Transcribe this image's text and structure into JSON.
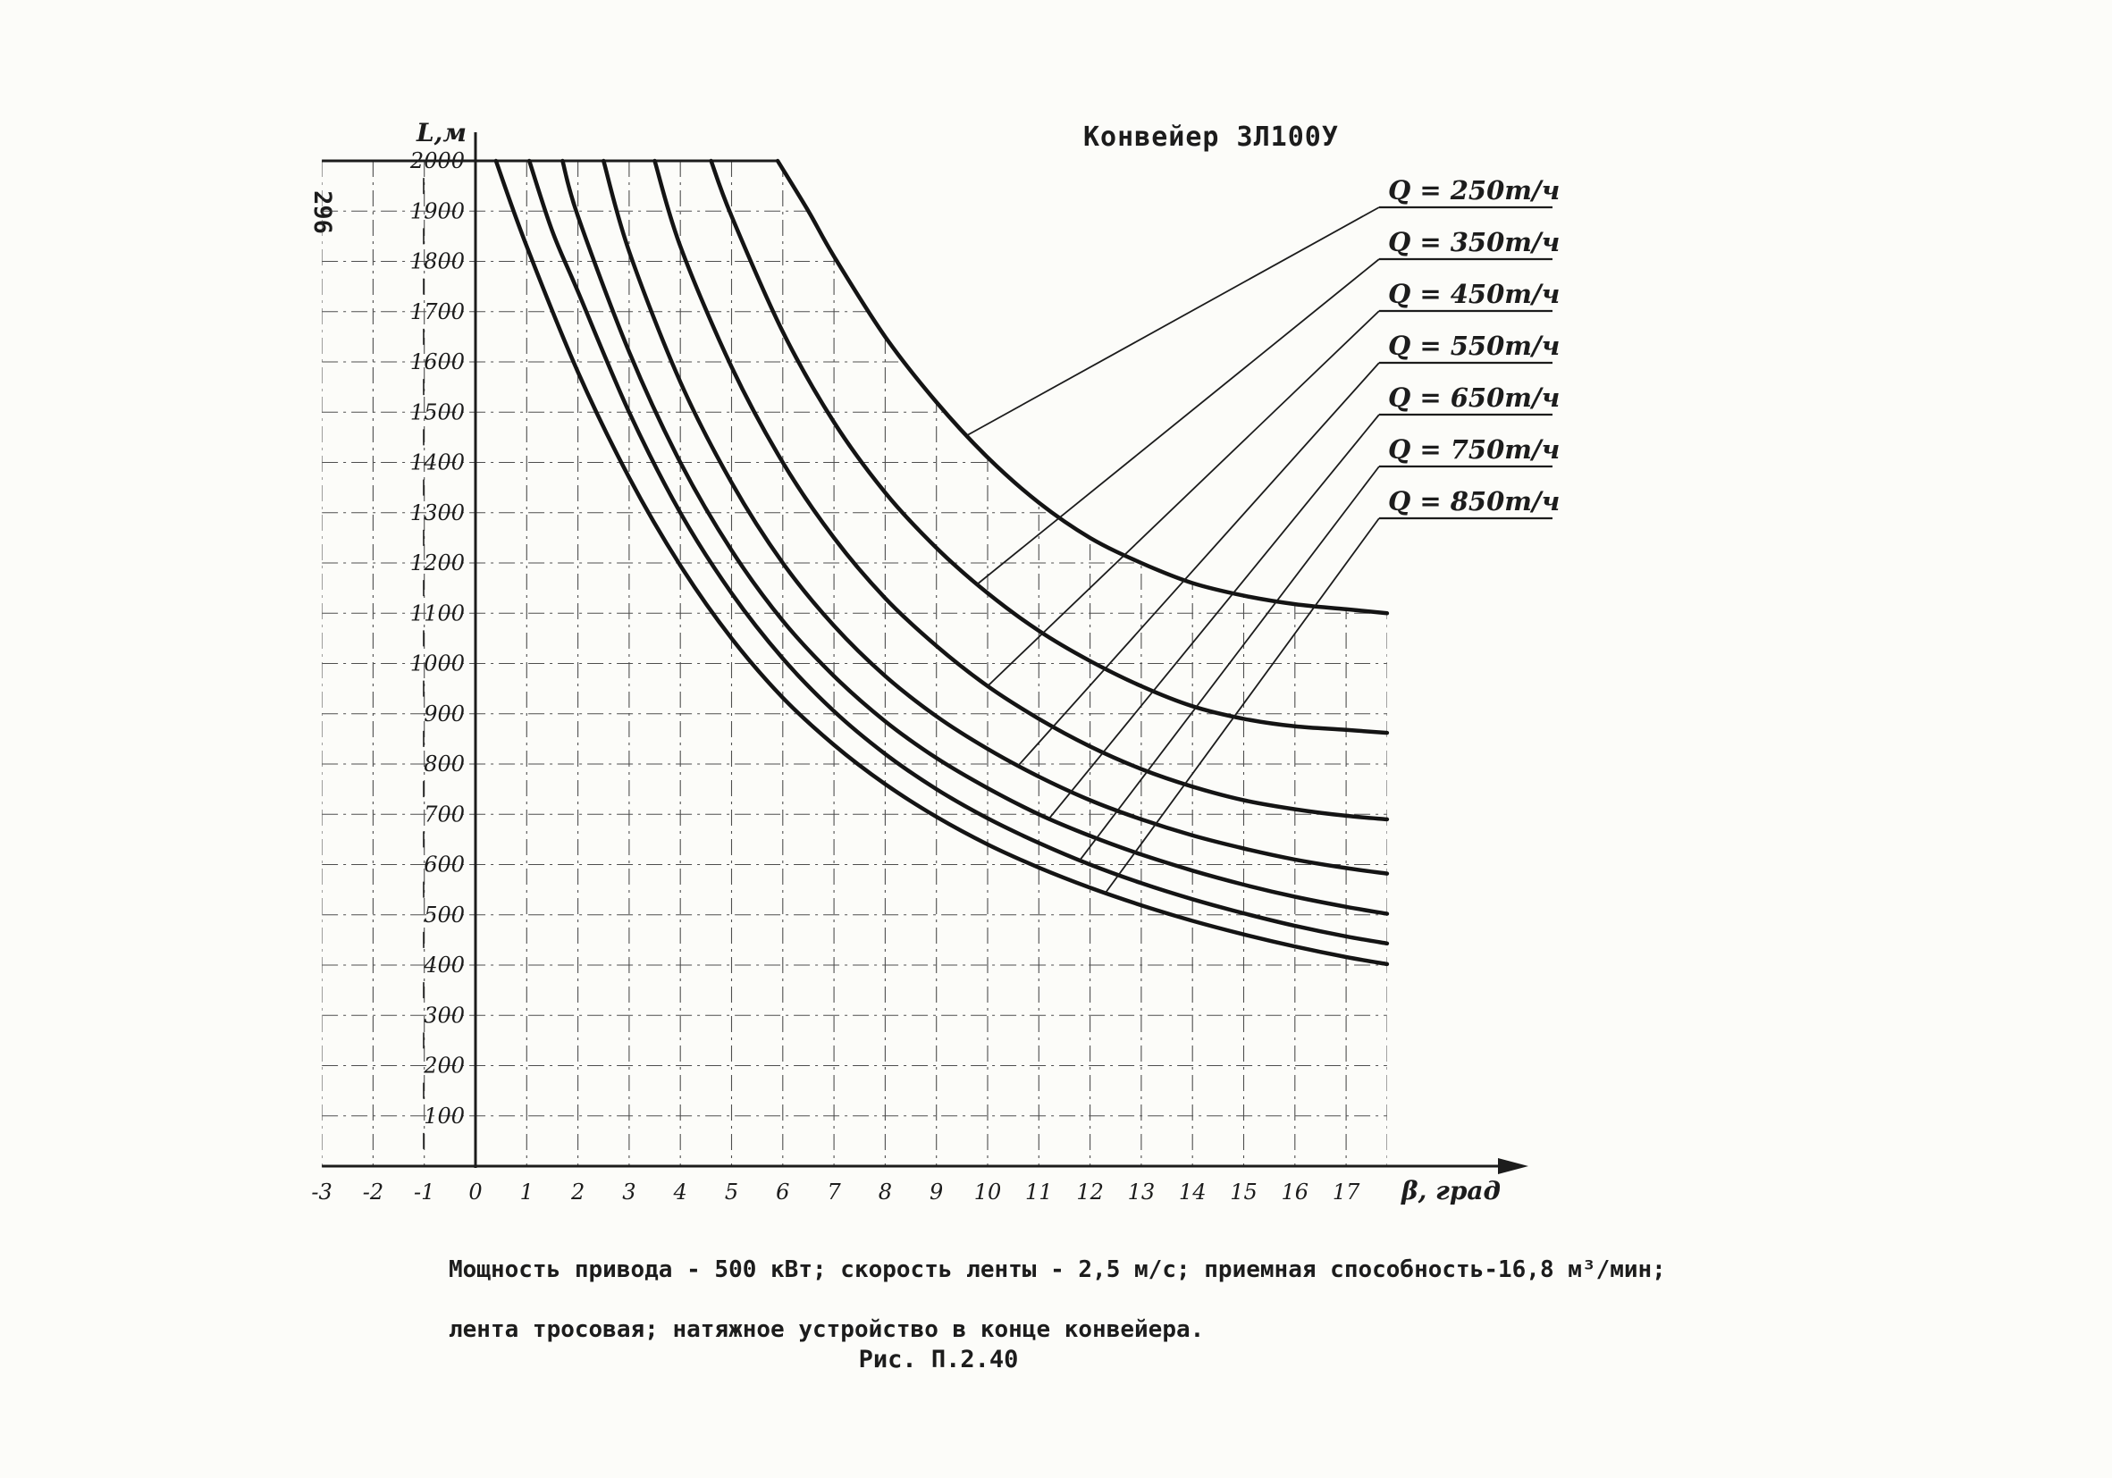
{
  "page": {
    "page_number": "296",
    "title": "Конвейер 3Л100У",
    "caption_line1": "Мощность привода - 500 кВт; скорость ленты - 2,5 м/с; приемная способность-16,8 м³/мин;",
    "caption_line2": "лента тросовая; натяжное устройство в конце конвейера.",
    "figure_label": "Рис. П.2.40"
  },
  "colors": {
    "ink": "#1c1c1c",
    "curve": "#141414",
    "grid": "#3c3c3c",
    "paper": "#fcfcf9"
  },
  "chart_data": {
    "type": "line",
    "title": "Конвейер 3Л100У",
    "xlabel": "β, град",
    "ylabel": "L,м",
    "xlim": [
      -3,
      17.8
    ],
    "ylim": [
      0,
      2000
    ],
    "x_ticks": [
      -3,
      -2,
      -1,
      0,
      1,
      2,
      3,
      4,
      5,
      6,
      7,
      8,
      9,
      10,
      11,
      12,
      13,
      14,
      15,
      16,
      17
    ],
    "y_ticks": [
      100,
      200,
      300,
      400,
      500,
      600,
      700,
      800,
      900,
      1000,
      1100,
      1200,
      1300,
      1400,
      1500,
      1600,
      1700,
      1800,
      1900,
      2000
    ],
    "grid": true,
    "legend_position": "right",
    "series": [
      {
        "id": "q250",
        "name": "Q = 250т/ч",
        "leader_attach_beta": 9.6,
        "points": [
          [
            5.9,
            2000
          ],
          [
            6.5,
            1900
          ],
          [
            7,
            1810
          ],
          [
            8,
            1650
          ],
          [
            9,
            1520
          ],
          [
            10,
            1410
          ],
          [
            11,
            1320
          ],
          [
            12,
            1250
          ],
          [
            13,
            1200
          ],
          [
            14,
            1160
          ],
          [
            15,
            1135
          ],
          [
            16,
            1118
          ],
          [
            17,
            1108
          ],
          [
            17.8,
            1100
          ]
        ]
      },
      {
        "id": "q350",
        "name": "Q = 350т/ч",
        "leader_attach_beta": 9.8,
        "points": [
          [
            4.6,
            2000
          ],
          [
            5,
            1890
          ],
          [
            6,
            1660
          ],
          [
            7,
            1480
          ],
          [
            8,
            1340
          ],
          [
            9,
            1230
          ],
          [
            10,
            1140
          ],
          [
            11,
            1065
          ],
          [
            12,
            1005
          ],
          [
            13,
            955
          ],
          [
            14,
            915
          ],
          [
            15,
            890
          ],
          [
            16,
            875
          ],
          [
            17,
            868
          ],
          [
            17.8,
            862
          ]
        ]
      },
      {
        "id": "q450",
        "name": "Q = 450т/ч",
        "leader_attach_beta": 10.0,
        "points": [
          [
            3.5,
            2000
          ],
          [
            4,
            1830
          ],
          [
            5,
            1590
          ],
          [
            6,
            1400
          ],
          [
            7,
            1250
          ],
          [
            8,
            1130
          ],
          [
            9,
            1035
          ],
          [
            10,
            955
          ],
          [
            11,
            890
          ],
          [
            12,
            835
          ],
          [
            13,
            790
          ],
          [
            14,
            755
          ],
          [
            15,
            728
          ],
          [
            16,
            710
          ],
          [
            17,
            697
          ],
          [
            17.8,
            690
          ]
        ]
      },
      {
        "id": "q550",
        "name": "Q = 550т/ч",
        "leader_attach_beta": 10.6,
        "points": [
          [
            2.5,
            2000
          ],
          [
            3,
            1820
          ],
          [
            4,
            1560
          ],
          [
            5,
            1360
          ],
          [
            6,
            1200
          ],
          [
            7,
            1075
          ],
          [
            8,
            975
          ],
          [
            9,
            895
          ],
          [
            10,
            830
          ],
          [
            11,
            775
          ],
          [
            12,
            728
          ],
          [
            13,
            690
          ],
          [
            14,
            658
          ],
          [
            15,
            632
          ],
          [
            16,
            610
          ],
          [
            17,
            593
          ],
          [
            17.8,
            582
          ]
        ]
      },
      {
        "id": "q650",
        "name": "Q = 650т/ч",
        "leader_attach_beta": 11.2,
        "points": [
          [
            1.7,
            2000
          ],
          [
            2,
            1890
          ],
          [
            3,
            1620
          ],
          [
            4,
            1400
          ],
          [
            5,
            1225
          ],
          [
            6,
            1085
          ],
          [
            7,
            975
          ],
          [
            8,
            885
          ],
          [
            9,
            812
          ],
          [
            10,
            752
          ],
          [
            11,
            700
          ],
          [
            12,
            657
          ],
          [
            13,
            620
          ],
          [
            14,
            588
          ],
          [
            15,
            560
          ],
          [
            16,
            536
          ],
          [
            17,
            516
          ],
          [
            17.8,
            502
          ]
        ]
      },
      {
        "id": "q750",
        "name": "Q = 750т/ч",
        "leader_attach_beta": 11.8,
        "points": [
          [
            1.05,
            2000
          ],
          [
            1.5,
            1860
          ],
          [
            2,
            1740
          ],
          [
            3,
            1500
          ],
          [
            4,
            1300
          ],
          [
            5,
            1140
          ],
          [
            6,
            1010
          ],
          [
            7,
            905
          ],
          [
            8,
            820
          ],
          [
            9,
            750
          ],
          [
            10,
            692
          ],
          [
            11,
            643
          ],
          [
            12,
            600
          ],
          [
            13,
            563
          ],
          [
            14,
            531
          ],
          [
            15,
            503
          ],
          [
            16,
            478
          ],
          [
            17,
            457
          ],
          [
            17.8,
            443
          ]
        ]
      },
      {
        "id": "q850",
        "name": "Q = 850т/ч",
        "leader_attach_beta": 12.3,
        "points": [
          [
            0.4,
            2000
          ],
          [
            1,
            1830
          ],
          [
            2,
            1580
          ],
          [
            3,
            1370
          ],
          [
            4,
            1195
          ],
          [
            5,
            1050
          ],
          [
            6,
            932
          ],
          [
            7,
            838
          ],
          [
            8,
            760
          ],
          [
            9,
            695
          ],
          [
            10,
            640
          ],
          [
            11,
            594
          ],
          [
            12,
            554
          ],
          [
            13,
            519
          ],
          [
            14,
            488
          ],
          [
            15,
            461
          ],
          [
            16,
            437
          ],
          [
            17,
            416
          ],
          [
            17.8,
            402
          ]
        ]
      }
    ]
  }
}
